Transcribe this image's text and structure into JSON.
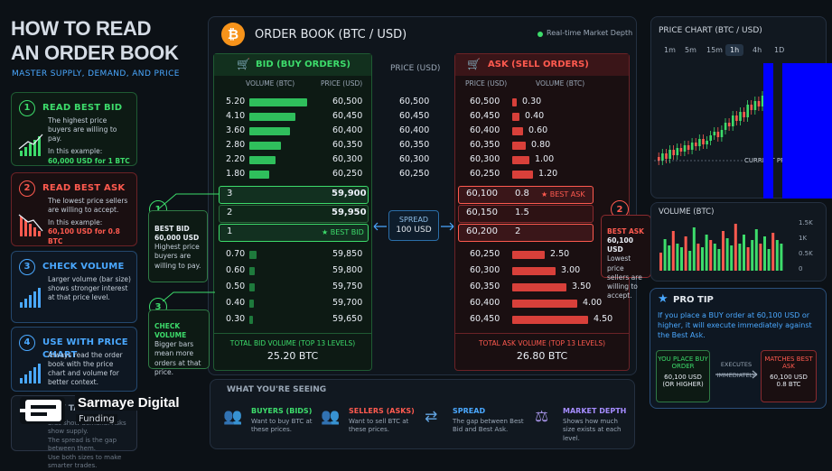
{
  "header": {
    "title1": "HOW TO READ",
    "title2": "AN ORDER BOOK",
    "subtitle": "MASTER SUPPLY, DEMAND, AND PRICE"
  },
  "steps": [
    {
      "n": "1",
      "title": "READ BEST BID",
      "t1": "The highest price buyers are willing to pay.",
      "t2": "In this example:",
      "t3": "60,000 USD for 1 BTC"
    },
    {
      "n": "2",
      "title": "READ BEST ASK",
      "t1": "The lowest price sellers are willing to accept.",
      "t2": "In this example:",
      "t3": "60,100 USD for 0.8 BTC"
    },
    {
      "n": "3",
      "title": "CHECK VOLUME",
      "t1": "Larger volume (bar size) shows stronger interest at that price level."
    },
    {
      "n": "4",
      "title": "USE WITH PRICE CHART",
      "t1": "Always read the order book with the price chart and volume for better context."
    }
  ],
  "takeaway": {
    "title": "KEY TAKEAWAY",
    "t1": "Bids show demand. Asks show supply.",
    "t2": "The spread is the gap between them.",
    "t3": "Use both sizes to make smarter trades."
  },
  "brand": {
    "name": "Sarmaye Digital",
    "sub": "Funding"
  },
  "orderbook": {
    "title": "ORDER BOOK (BTC / USD)",
    "live": "Real-time Market Depth",
    "bid_title": "BID (BUY ORDERS)",
    "ask_title": "ASK (SELL ORDERS)",
    "price_header": "PRICE (USD)",
    "vol_col": "VOLUME (BTC)",
    "price_col": "PRICE (USD)",
    "bids": [
      {
        "v": "5.20",
        "p": "60,500",
        "b": 1
      },
      {
        "v": "4.10",
        "p": "60,450",
        "b": 0.8
      },
      {
        "v": "3.60",
        "p": "60,400",
        "b": 0.7
      },
      {
        "v": "2.80",
        "p": "60,350",
        "b": 0.55
      },
      {
        "v": "2.20",
        "p": "60,300",
        "b": 0.45
      },
      {
        "v": "1.80",
        "p": "60,250",
        "b": 0.35
      }
    ],
    "mid_prices": [
      "60,500",
      "60,450",
      "60,400",
      "60,350",
      "60,300",
      "60,250"
    ],
    "asks": [
      {
        "p": "60,500",
        "v": "0.30",
        "b": 0.08
      },
      {
        "p": "60,450",
        "v": "0.40",
        "b": 0.12
      },
      {
        "p": "60,400",
        "v": "0.60",
        "b": 0.18
      },
      {
        "p": "60,350",
        "v": "0.80",
        "b": 0.24
      },
      {
        "p": "60,300",
        "v": "1.00",
        "b": 0.3
      },
      {
        "p": "60,250",
        "v": "1.20",
        "b": 0.36
      }
    ],
    "best_bids": [
      {
        "v": "3",
        "p": "59,900"
      },
      {
        "v": "2",
        "p": "59,950"
      },
      {
        "v": "1",
        "p": "",
        "tag": "★ BEST BID"
      }
    ],
    "best_asks": [
      {
        "p": "60,100",
        "v": "0.8",
        "tag": "★ BEST ASK"
      },
      {
        "p": "60,150",
        "v": "1.5"
      },
      {
        "p": "60,200",
        "v": "2"
      }
    ],
    "spread_label": "SPREAD",
    "spread_value": "100 USD",
    "lower_bids": [
      {
        "v": "0.70",
        "p": "59,850",
        "b": 0.12
      },
      {
        "v": "0.60",
        "p": "59,800",
        "b": 0.1
      },
      {
        "v": "0.50",
        "p": "59,750",
        "b": 0.09
      },
      {
        "v": "0.40",
        "p": "59,700",
        "b": 0.08
      },
      {
        "v": "0.30",
        "p": "59,650",
        "b": 0.07
      }
    ],
    "lower_asks": [
      {
        "p": "60,250",
        "v": "2.50",
        "b": 0.3
      },
      {
        "p": "60,300",
        "v": "3.00",
        "b": 0.4
      },
      {
        "p": "60,350",
        "v": "3.50",
        "b": 0.5
      },
      {
        "p": "60,400",
        "v": "4.00",
        "b": 0.6
      },
      {
        "p": "60,450",
        "v": "4.50",
        "b": 0.7
      }
    ],
    "total_bid_label": "TOTAL BID VOLUME (TOP 13 LEVELS)",
    "total_bid": "25.20 BTC",
    "total_ask_label": "TOTAL ASK VOLUME (TOP 13 LEVELS)",
    "total_ask": "26.80 BTC"
  },
  "callouts": {
    "c1": {
      "n": "1",
      "title": "BEST BID",
      "val": "60,000 USD",
      "text": "Highest price buyers are willing to pay."
    },
    "c2": {
      "n": "2",
      "title": "BEST ASK",
      "val": "60,100 USD",
      "text": "Lowest price sellers are willing to accept."
    },
    "c3": {
      "n": "3",
      "title": "CHECK VOLUME",
      "text": "Bigger bars mean more orders at that price."
    }
  },
  "seeing": {
    "title": "WHAT YOU'RE SEEING",
    "items": [
      {
        "title": "BUYERS (BIDS)",
        "text": "Want to buy BTC at these prices.",
        "color": "#3ddc6b"
      },
      {
        "title": "SELLERS (ASKS)",
        "text": "Want to sell BTC at these prices.",
        "color": "#ff5a4f"
      },
      {
        "title": "SPREAD",
        "text": "The gap between Best Bid and Best Ask.",
        "color": "#4aa8ff"
      },
      {
        "title": "MARKET DEPTH",
        "text": "Shows how much size exists at each level.",
        "color": "#a58cff"
      }
    ]
  },
  "price_chart": {
    "title": "PRICE CHART (BTC / USD)",
    "timeframes": [
      "1m",
      "5m",
      "15m",
      "1h",
      "4h",
      "1D"
    ],
    "active": "1h",
    "label": "CURRENT PRICE"
  },
  "volume_chart": {
    "title": "VOLUME (BTC)",
    "ticks": [
      "1.5K",
      "1K",
      "0.5K",
      "0"
    ]
  },
  "tip": {
    "title": "PRO TIP",
    "text": "If you place a BUY order at 60,100 USD or higher, it will execute immediately against the Best Ask.",
    "box1": "YOU PLACE BUY ORDER",
    "box1v": "60,100 USD",
    "box1s": "(OR HIGHER)",
    "arrow": "EXECUTES IMMEDIATELY",
    "box2": "MATCHES BEST ASK",
    "box2v": "60,100 USD",
    "box2s": "0.8 BTC"
  },
  "colors": {
    "bid": "#3ddc6b",
    "ask": "#ff5a4f",
    "accent": "#4aa8ff"
  }
}
